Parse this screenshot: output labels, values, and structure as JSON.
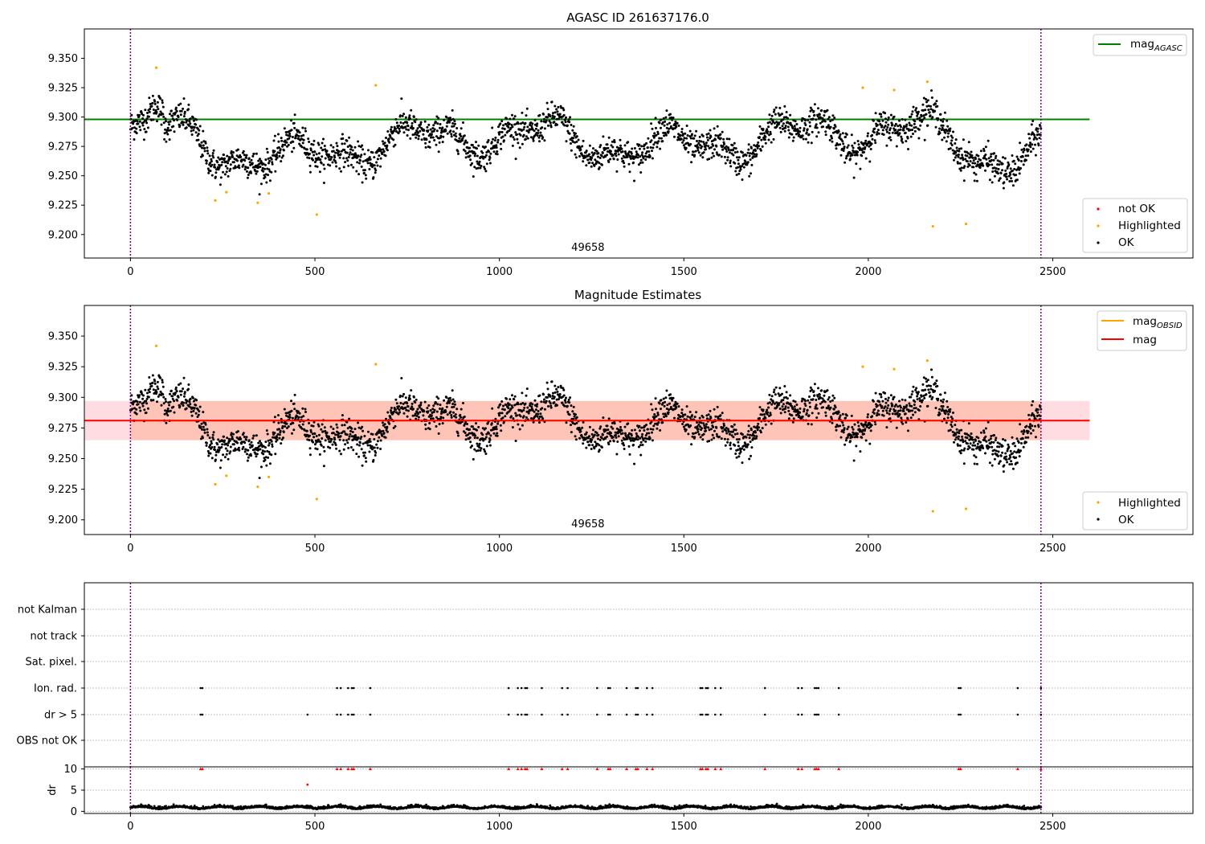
{
  "chart_data": [
    {
      "type": "scatter",
      "title": "AGASC ID 261637176.0",
      "xlim": [
        -125,
        2880
      ],
      "ylim": [
        9.18,
        9.375
      ],
      "xticks": [
        0,
        500,
        1000,
        1500,
        2000,
        2500
      ],
      "xtick_labels": [
        "0",
        "500",
        "1000",
        "1500",
        "2000",
        "2500"
      ],
      "yticks": [
        9.2,
        9.225,
        9.25,
        9.275,
        9.3,
        9.325,
        9.35
      ],
      "ytick_labels": [
        "9.200",
        "9.225",
        "9.250",
        "9.275",
        "9.300",
        "9.325",
        "9.350"
      ],
      "obsid_label": "49658",
      "obsid_label_x": 1240,
      "vlines_x": [
        0,
        2468
      ],
      "colors": {
        "agasc_line": "#008000",
        "ok": "#000000",
        "highlighted": "#ffa500",
        "not_ok": "#ff0000",
        "vline": "#800080"
      },
      "mag_agasc": 9.298,
      "mag_agasc_xrange": [
        -125,
        2600
      ],
      "legend_upper": {
        "placement": "top-right",
        "label_main": "mag",
        "label_sub": "AGASC"
      },
      "legend_lower": {
        "placement": "bottom-right",
        "items": [
          {
            "label": "not OK",
            "color": "#ff0000"
          },
          {
            "label": "Highlighted",
            "color": "#ffa500"
          },
          {
            "label": "OK",
            "color": "#000000"
          }
        ]
      },
      "highlighted_points": {
        "x": [
          70,
          230,
          260,
          345,
          375,
          505,
          665,
          1985,
          2070,
          2160,
          2175,
          2265
        ],
        "y": [
          9.342,
          9.229,
          9.236,
          9.227,
          9.235,
          9.217,
          9.327,
          9.325,
          9.323,
          9.33,
          9.207,
          9.209
        ]
      },
      "ok_points": {
        "n": 2470,
        "x_range": [
          0,
          2468
        ],
        "description_of_y": "approximately 9.245 to 9.32, fluctuating around 9.28"
      }
    },
    {
      "type": "scatter",
      "title": "Magnitude Estimates",
      "xlim": [
        -125,
        2880
      ],
      "ylim": [
        9.188,
        9.375
      ],
      "xticks": [
        0,
        500,
        1000,
        1500,
        2000,
        2500
      ],
      "xtick_labels": [
        "0",
        "500",
        "1000",
        "1500",
        "2000",
        "2500"
      ],
      "yticks": [
        9.2,
        9.225,
        9.25,
        9.275,
        9.3,
        9.325,
        9.35
      ],
      "ytick_labels": [
        "9.200",
        "9.225",
        "9.250",
        "9.275",
        "9.300",
        "9.325",
        "9.350"
      ],
      "obsid_label": "49658",
      "obsid_label_x": 1240,
      "vlines_x": [
        0,
        2468
      ],
      "mag": 9.281,
      "mag_band": [
        9.265,
        9.297
      ],
      "mag_xrange": [
        -125,
        2600
      ],
      "mag_obsid": 9.281,
      "mag_obsid_band": [
        9.265,
        9.297
      ],
      "mag_obsid_xrange": [
        0,
        2468
      ],
      "colors": {
        "mag_line": "#ff0000",
        "mag_band": "#ffc0cb",
        "obsid_band": "#ffa07a",
        "mag_obsid_legend": "#ffa500"
      },
      "legend_upper": {
        "placement": "top-right",
        "items": [
          {
            "label_main": "mag",
            "label_sub": "OBSID",
            "color": "#ffa500"
          },
          {
            "label_main": "mag",
            "label_sub": "",
            "color": "#ff0000"
          }
        ]
      },
      "legend_lower": {
        "placement": "bottom-right",
        "items": [
          {
            "label": "Highlighted",
            "color": "#ffa500"
          },
          {
            "label": "OK",
            "color": "#000000"
          }
        ]
      }
    },
    {
      "type": "scatter",
      "title": "",
      "xlim": [
        -125,
        2880
      ],
      "category_labels": [
        "not Kalman",
        "not track",
        "Sat. pixel.",
        "Ion. rad.",
        "dr > 5",
        "OBS not OK"
      ],
      "flag_times_ion": [
        190,
        195,
        560,
        570,
        590,
        600,
        605,
        650,
        1025,
        1050,
        1060,
        1070,
        1075,
        1115,
        1170,
        1185,
        1265,
        1295,
        1300,
        1345,
        1370,
        1375,
        1400,
        1415,
        1545,
        1550,
        1560,
        1565,
        1585,
        1600,
        1720,
        1810,
        1820,
        1855,
        1860,
        1865,
        1920,
        2245,
        2250,
        2405,
        2468
      ],
      "flag_times_dr": [
        190,
        195,
        480,
        560,
        570,
        590,
        600,
        605,
        650,
        1025,
        1050,
        1060,
        1070,
        1075,
        1115,
        1170,
        1185,
        1265,
        1295,
        1300,
        1345,
        1370,
        1375,
        1400,
        1415,
        1545,
        1550,
        1560,
        1565,
        1585,
        1600,
        1720,
        1810,
        1820,
        1855,
        1860,
        1865,
        1920,
        2245,
        2250,
        2405,
        2468
      ]
    },
    {
      "type": "scatter",
      "title": "",
      "ylabel": "dr",
      "xlim": [
        -125,
        2880
      ],
      "ylim": [
        -0.5,
        10.5
      ],
      "yticks": [
        0,
        5,
        10
      ],
      "ytick_labels": [
        "0",
        "5",
        "10"
      ],
      "xticks": [
        0,
        500,
        1000,
        1500,
        2000,
        2500
      ],
      "xtick_labels": [
        "0",
        "500",
        "1000",
        "1500",
        "2000",
        "2500"
      ],
      "capped_times": [
        190,
        195,
        560,
        570,
        590,
        600,
        605,
        650,
        1025,
        1050,
        1060,
        1070,
        1075,
        1115,
        1170,
        1185,
        1265,
        1295,
        1300,
        1345,
        1370,
        1375,
        1400,
        1415,
        1545,
        1550,
        1560,
        1565,
        1585,
        1600,
        1720,
        1810,
        1820,
        1855,
        1860,
        1865,
        1920,
        2245,
        2250,
        2405,
        2468
      ],
      "capped_value": 10,
      "extra_red_points": {
        "x": [
          480
        ],
        "y": [
          6.3
        ]
      },
      "ok_dr_level": "about 0.3 to 1.5"
    }
  ]
}
